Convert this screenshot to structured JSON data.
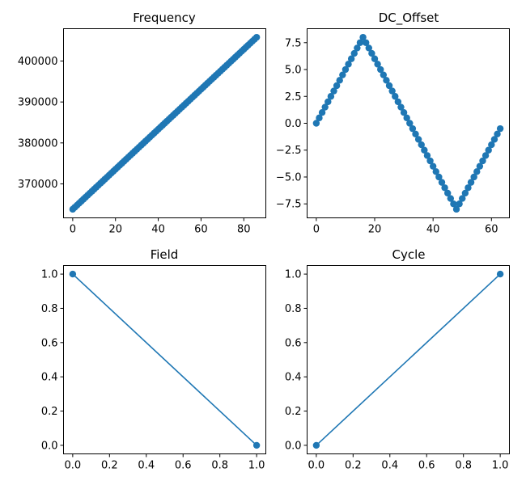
{
  "figure": {
    "background": "#ffffff",
    "series_color": "#1f77b4"
  },
  "chart_data": [
    {
      "type": "line",
      "title": "Frequency",
      "marker": "o",
      "x_from": 0,
      "x_to": 86,
      "x_step": 1,
      "y_start": 363800,
      "y_end": 405800,
      "xlim": [
        -4.3,
        90.3
      ],
      "ylim": [
        361700,
        407900
      ],
      "xticks": [
        0,
        20,
        40,
        60,
        80
      ],
      "yticks": [
        370000,
        380000,
        390000,
        400000
      ],
      "xticklabels": [
        "0",
        "20",
        "40",
        "60",
        "80"
      ],
      "yticklabels": [
        "370000",
        "380000",
        "390000",
        "400000"
      ]
    },
    {
      "type": "line",
      "title": "DC_Offset",
      "marker": "o",
      "x_from": 0,
      "x_to": 63,
      "x_step": 1,
      "y_pattern": "triangle wave, step 0.5: 0 → 8 (x=16) → -8 (x=48) → -0.5 (x=63)",
      "y": [
        0,
        0.5,
        1,
        1.5,
        2,
        2.5,
        3,
        3.5,
        4,
        4.5,
        5,
        5.5,
        6,
        6.5,
        7,
        7.5,
        8,
        7.5,
        7,
        6.5,
        6,
        5.5,
        5,
        4.5,
        4,
        3.5,
        3,
        2.5,
        2,
        1.5,
        1,
        0.5,
        0,
        -0.5,
        -1,
        -1.5,
        -2,
        -2.5,
        -3,
        -3.5,
        -4,
        -4.5,
        -5,
        -5.5,
        -6,
        -6.5,
        -7,
        -7.5,
        -8,
        -7.5,
        -7,
        -6.5,
        -6,
        -5.5,
        -5,
        -4.5,
        -4,
        -3.5,
        -3,
        -2.5,
        -2,
        -1.5,
        -1,
        -0.5
      ],
      "xlim": [
        -3.15,
        66.15
      ],
      "ylim": [
        -8.8,
        8.8
      ],
      "xticks": [
        0,
        20,
        40,
        60
      ],
      "yticks": [
        -7.5,
        -5.0,
        -2.5,
        0.0,
        2.5,
        5.0,
        7.5
      ],
      "xticklabels": [
        "0",
        "20",
        "40",
        "60"
      ],
      "yticklabels": [
        "−7.5",
        "−5.0",
        "−2.5",
        "0.0",
        "2.5",
        "5.0",
        "7.5"
      ]
    },
    {
      "type": "line",
      "title": "Field",
      "marker": "o",
      "x": [
        0,
        1
      ],
      "y": [
        1,
        0
      ],
      "xlim": [
        -0.05,
        1.05
      ],
      "ylim": [
        -0.05,
        1.05
      ],
      "xticks": [
        0,
        0.2,
        0.4,
        0.6,
        0.8,
        1.0
      ],
      "yticks": [
        0,
        0.2,
        0.4,
        0.6,
        0.8,
        1.0
      ],
      "xticklabels": [
        "0.0",
        "0.2",
        "0.4",
        "0.6",
        "0.8",
        "1.0"
      ],
      "yticklabels": [
        "0.0",
        "0.2",
        "0.4",
        "0.6",
        "0.8",
        "1.0"
      ]
    },
    {
      "type": "line",
      "title": "Cycle",
      "marker": "o",
      "x": [
        0,
        1
      ],
      "y": [
        0,
        1
      ],
      "xlim": [
        -0.05,
        1.05
      ],
      "ylim": [
        -0.05,
        1.05
      ],
      "xticks": [
        0,
        0.2,
        0.4,
        0.6,
        0.8,
        1.0
      ],
      "yticks": [
        0,
        0.2,
        0.4,
        0.6,
        0.8,
        1.0
      ],
      "xticklabels": [
        "0.0",
        "0.2",
        "0.4",
        "0.6",
        "0.8",
        "1.0"
      ],
      "yticklabels": [
        "0.0",
        "0.2",
        "0.4",
        "0.6",
        "0.8",
        "1.0"
      ]
    }
  ]
}
